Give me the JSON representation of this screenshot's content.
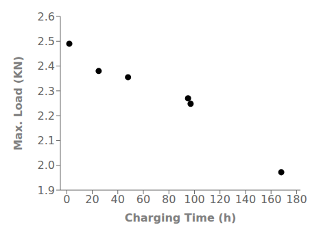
{
  "chart_data": {
    "type": "scatter",
    "x": [
      2,
      25,
      48,
      95,
      97,
      168
    ],
    "values": [
      2.49,
      2.38,
      2.355,
      2.27,
      2.248,
      1.972
    ],
    "xlabel": "Charging Time (h)",
    "ylabel": "Max. Load (KN)",
    "xlim": [
      -5,
      183
    ],
    "ylim": [
      1.9,
      2.6
    ],
    "xticks": [
      0,
      20,
      40,
      60,
      80,
      100,
      120,
      140,
      160,
      180
    ],
    "yticks": [
      1.9,
      {
        "value": 2.0,
        "label": "2.0"
      },
      2.1,
      2.2,
      2.3,
      2.4,
      2.5,
      2.6
    ],
    "color": "black",
    "marker": "circle",
    "grid": false
  }
}
